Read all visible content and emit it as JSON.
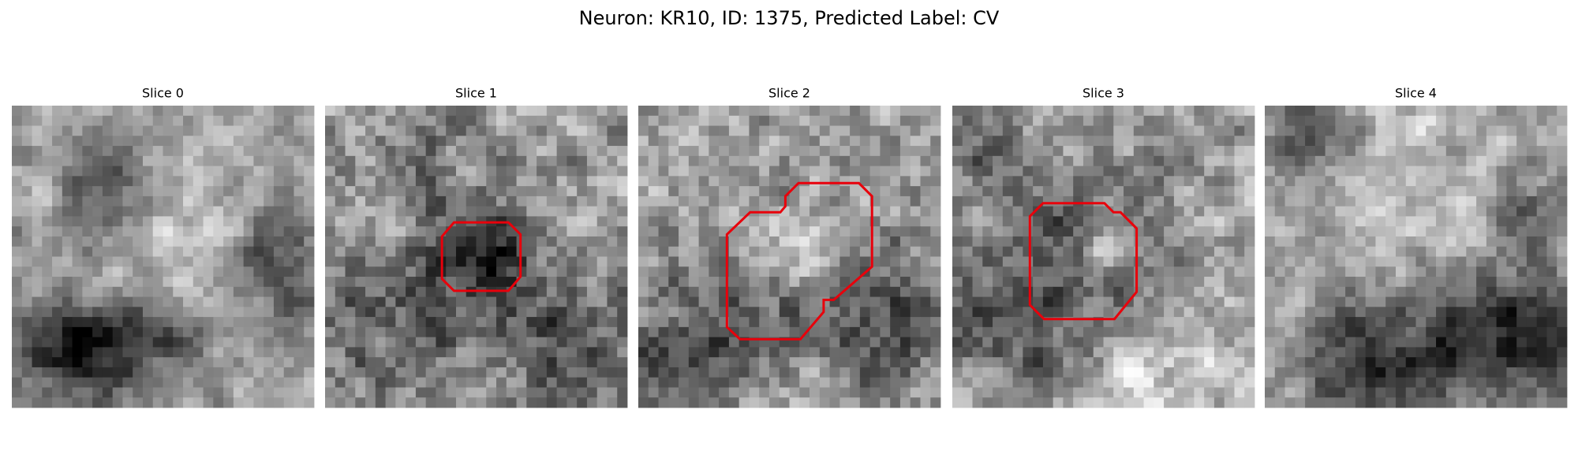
{
  "title": "Neuron: KR10, ID: 1375, Predicted Label: CV",
  "panels": [
    {
      "title": "Slice 0"
    },
    {
      "title": "Slice 1"
    },
    {
      "title": "Slice 2"
    },
    {
      "title": "Slice 3"
    },
    {
      "title": "Slice 4"
    }
  ]
}
